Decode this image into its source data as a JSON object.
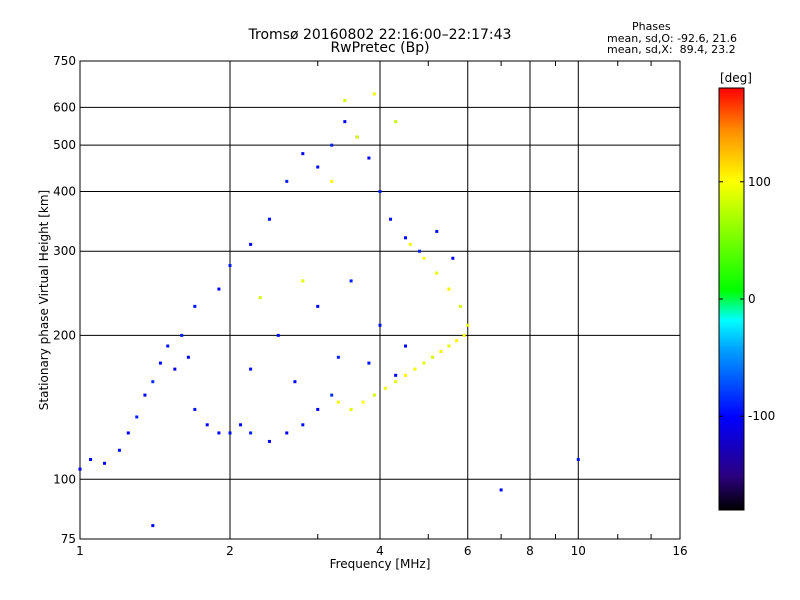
{
  "header": {
    "title_line1": "Tromsø 20160802 22:16:00–22:17:43",
    "title_line2": "RwPretec (Bp)",
    "stats_heading": "Phases",
    "stats_o": "mean, sd,O: -92.6, 21.6",
    "stats_x": "mean, sd,X:  89.4, 23.2"
  },
  "colorbar": {
    "unit_label": "[deg]",
    "tick_labels": [
      "100",
      "0",
      "-100"
    ],
    "tick_values": [
      100,
      0,
      -100
    ],
    "range": [
      -180,
      180
    ],
    "colors": [
      "#000000",
      "#2b007f",
      "#0000ff",
      "#00a0ff",
      "#00ffff",
      "#00ff00",
      "#ffff00",
      "#ff8c00",
      "#ff0000"
    ]
  },
  "chart_data": {
    "type": "scatter",
    "title": "Tromsø 20160802 22:16:00–22:17:43",
    "subtitle": "RwPretec (Bp)",
    "xlabel": "Frequency [MHz]",
    "ylabel": "Stationary phase Virtual Height [km]",
    "xscale": "log",
    "yscale": "log",
    "xlim": [
      1,
      16
    ],
    "ylim": [
      75,
      750
    ],
    "x_ticks": [
      1,
      2,
      4,
      6,
      8,
      10,
      16
    ],
    "x_tick_labels": [
      "1",
      "2",
      "4",
      "6",
      "8",
      "10",
      "16"
    ],
    "x_minor_ticks": [
      3,
      5,
      7,
      9,
      12,
      14
    ],
    "y_ticks": [
      75,
      100,
      200,
      300,
      400,
      500,
      600,
      750
    ],
    "y_tick_labels": [
      "75",
      "100",
      "200",
      "300",
      "400",
      "500",
      "600",
      "750"
    ],
    "grid": true,
    "color_encoding": "phase [deg]",
    "series": [
      {
        "name": "O",
        "color": "#0000ff",
        "points": [
          [
            1.0,
            105,
            -110
          ],
          [
            1.05,
            110,
            -100
          ],
          [
            1.12,
            108,
            -105
          ],
          [
            1.2,
            115,
            -95
          ],
          [
            1.25,
            125,
            -100
          ],
          [
            1.3,
            135,
            -90
          ],
          [
            1.35,
            150,
            -100
          ],
          [
            1.4,
            160,
            -85
          ],
          [
            1.45,
            175,
            -100
          ],
          [
            1.5,
            190,
            -95
          ],
          [
            1.55,
            170,
            -110
          ],
          [
            1.6,
            200,
            -90
          ],
          [
            1.65,
            180,
            -100
          ],
          [
            1.7,
            140,
            -95
          ],
          [
            1.8,
            130,
            -105
          ],
          [
            1.9,
            125,
            -100
          ],
          [
            2.0,
            125,
            -95
          ],
          [
            2.1,
            130,
            -100
          ],
          [
            2.2,
            125,
            -90
          ],
          [
            2.4,
            120,
            -105
          ],
          [
            2.6,
            125,
            -100
          ],
          [
            2.8,
            130,
            -95
          ],
          [
            3.0,
            140,
            -100
          ],
          [
            3.2,
            150,
            -85
          ],
          [
            1.7,
            230,
            -95
          ],
          [
            1.9,
            250,
            -100
          ],
          [
            2.0,
            280,
            -90
          ],
          [
            2.2,
            310,
            -100
          ],
          [
            2.4,
            350,
            -95
          ],
          [
            2.6,
            420,
            -90
          ],
          [
            2.8,
            480,
            -100
          ],
          [
            3.0,
            450,
            -95
          ],
          [
            3.2,
            500,
            -90
          ],
          [
            3.4,
            560,
            -100
          ],
          [
            3.6,
            520,
            -95
          ],
          [
            3.8,
            470,
            -100
          ],
          [
            4.0,
            400,
            -90
          ],
          [
            4.2,
            350,
            -95
          ],
          [
            4.5,
            320,
            -100
          ],
          [
            4.8,
            300,
            -90
          ],
          [
            5.2,
            330,
            -95
          ],
          [
            5.6,
            290,
            -100
          ],
          [
            2.5,
            200,
            -95
          ],
          [
            3.0,
            230,
            -100
          ],
          [
            3.5,
            260,
            -90
          ],
          [
            4.0,
            210,
            -95
          ],
          [
            4.5,
            190,
            -100
          ],
          [
            2.2,
            170,
            -95
          ],
          [
            2.7,
            160,
            -100
          ],
          [
            3.3,
            180,
            -90
          ],
          [
            3.8,
            175,
            -95
          ],
          [
            4.3,
            165,
            -100
          ],
          [
            1.4,
            80,
            -100
          ],
          [
            7.0,
            95,
            -100
          ],
          [
            10.0,
            110,
            -95
          ]
        ]
      },
      {
        "name": "X",
        "color": "#ffff00",
        "points": [
          [
            3.3,
            145,
            95
          ],
          [
            3.5,
            140,
            90
          ],
          [
            3.7,
            145,
            100
          ],
          [
            3.9,
            150,
            85
          ],
          [
            4.1,
            155,
            95
          ],
          [
            4.3,
            160,
            90
          ],
          [
            4.5,
            165,
            100
          ],
          [
            4.7,
            170,
            95
          ],
          [
            4.9,
            175,
            90
          ],
          [
            5.1,
            180,
            85
          ],
          [
            5.3,
            185,
            95
          ],
          [
            5.5,
            190,
            90
          ],
          [
            5.7,
            195,
            100
          ],
          [
            5.9,
            200,
            95
          ],
          [
            6.0,
            210,
            90
          ],
          [
            5.8,
            230,
            85
          ],
          [
            5.5,
            250,
            95
          ],
          [
            5.2,
            270,
            90
          ],
          [
            4.9,
            290,
            100
          ],
          [
            4.6,
            310,
            95
          ],
          [
            3.6,
            520,
            90
          ],
          [
            3.4,
            620,
            85
          ],
          [
            3.9,
            640,
            95
          ],
          [
            4.3,
            560,
            80
          ],
          [
            3.2,
            420,
            100
          ],
          [
            2.8,
            260,
            90
          ],
          [
            2.3,
            240,
            85
          ]
        ]
      }
    ]
  }
}
